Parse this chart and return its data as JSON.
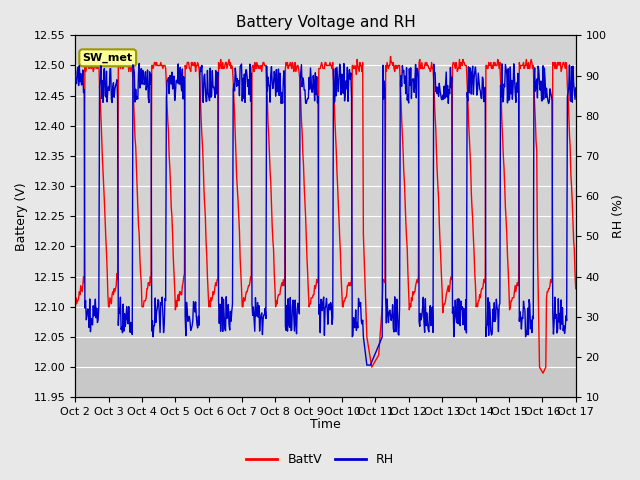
{
  "title": "Battery Voltage and RH",
  "xlabel": "Time",
  "ylabel_left": "Battery (V)",
  "ylabel_right": "RH (%)",
  "ylim_left": [
    11.95,
    12.55
  ],
  "ylim_right": [
    10,
    100
  ],
  "yticks_left": [
    11.95,
    12.0,
    12.05,
    12.1,
    12.15,
    12.2,
    12.25,
    12.3,
    12.35,
    12.4,
    12.45,
    12.5,
    12.55
  ],
  "yticks_right": [
    10,
    20,
    30,
    40,
    50,
    60,
    70,
    80,
    90,
    100
  ],
  "xtick_labels": [
    "Oct 2",
    "Oct 3",
    "Oct 4",
    "Oct 5",
    "Oct 6",
    "Oct 7",
    "Oct 8",
    "Oct 9",
    "Oct 10",
    "Oct 11",
    "Oct 12",
    "Oct 13",
    "Oct 14",
    "Oct 15",
    "Oct 16",
    "Oct 17"
  ],
  "legend_label_batt": "BattV",
  "legend_label_rh": "RH",
  "batt_color": "#FF0000",
  "rh_color": "#0000CD",
  "bg_color": "#E8E8E8",
  "plot_bg_upper": "#D3D3D3",
  "plot_bg_lower": "#C8C8C8",
  "annotation_text": "SW_met",
  "annotation_bg": "#FFFF99",
  "annotation_border": "#999900",
  "grid_color": "#FFFFFF",
  "title_fontsize": 11,
  "axis_fontsize": 9,
  "tick_fontsize": 8
}
